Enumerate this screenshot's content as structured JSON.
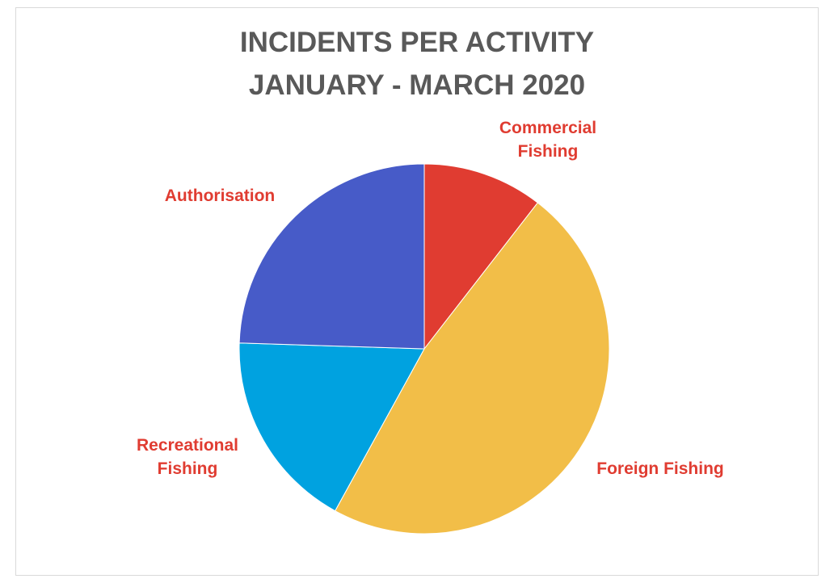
{
  "chart_data": {
    "type": "pie",
    "title_lines": [
      "INCIDENTS PER ACTIVITY",
      "JANUARY - MARCH 2020"
    ],
    "slices": [
      {
        "name": "Commercial Fishing",
        "label_lines": [
          "Commercial",
          "Fishing"
        ],
        "value": 10.5,
        "color": "#e03c31"
      },
      {
        "name": "Foreign Fishing",
        "label_lines": [
          "Foreign Fishing"
        ],
        "value": 47.5,
        "color": "#f2be48"
      },
      {
        "name": "Recreational Fishing",
        "label_lines": [
          "Recreational",
          "Fishing"
        ],
        "value": 17.5,
        "color": "#00a2e0"
      },
      {
        "name": "Authorisation",
        "label_lines": [
          "Authorisation"
        ],
        "value": 24.5,
        "color": "#475bc8"
      }
    ],
    "label_color": "#e03c31",
    "start_angle": "12 o'clock",
    "direction": "clockwise",
    "legend": "none"
  }
}
